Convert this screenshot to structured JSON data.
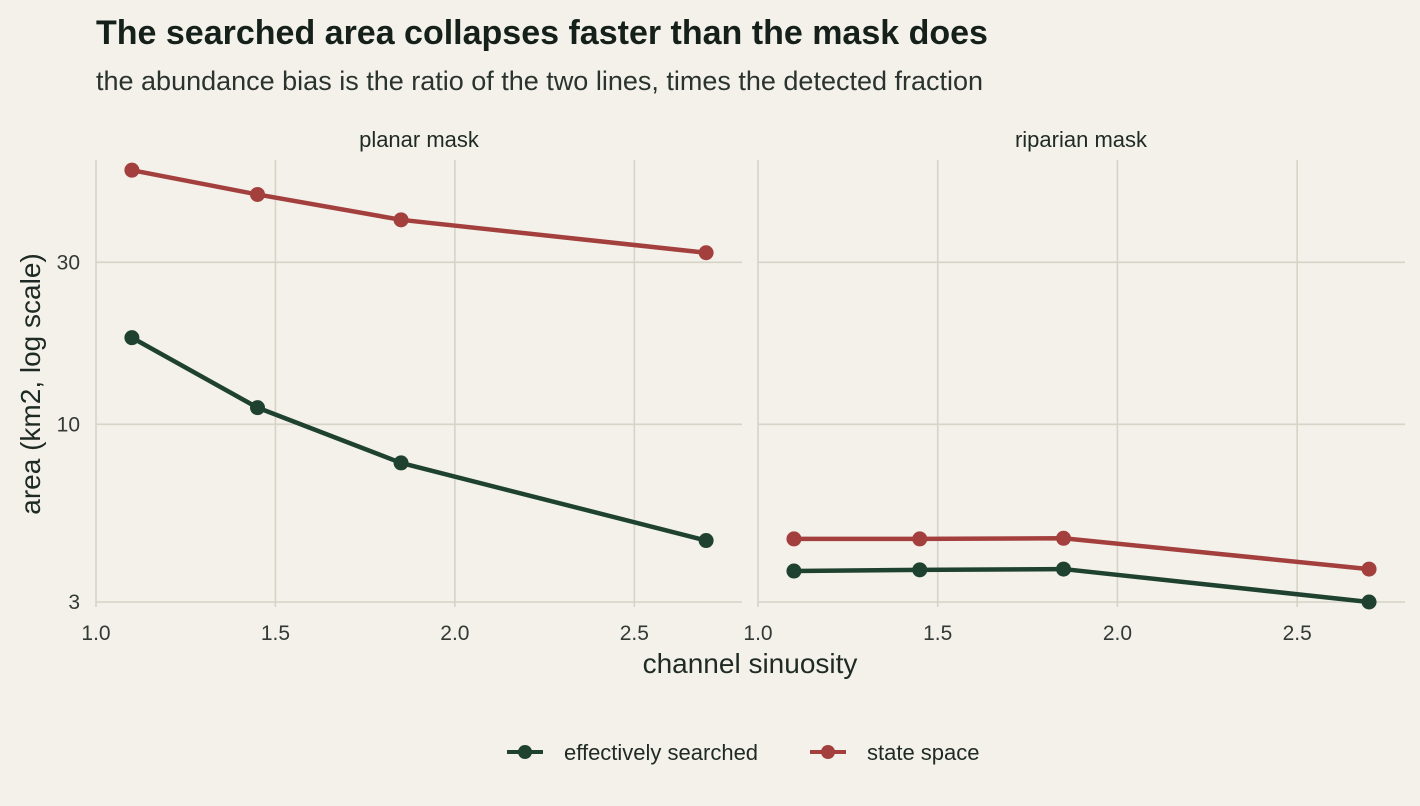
{
  "chart_data": {
    "type": "line",
    "title": "The searched area collapses faster than the mask does",
    "subtitle": "the abundance bias is the ratio of the two lines, times the detected fraction",
    "xlabel": "channel sinuosity",
    "ylabel": "area (km2, log scale)",
    "y_scale": "log",
    "xlim": [
      1.0,
      2.8
    ],
    "ylim": [
      2.9,
      60
    ],
    "x_ticks": [
      1.0,
      1.5,
      2.0,
      2.5
    ],
    "x_tick_labels": [
      "1.0",
      "1.5",
      "2.0",
      "2.5"
    ],
    "y_ticks": [
      3,
      10,
      30
    ],
    "y_tick_labels": [
      "3",
      "10",
      "30"
    ],
    "grid": true,
    "legend_position": "bottom",
    "colors": {
      "effectively searched": "#1f4230",
      "state space": "#a3403e"
    },
    "panels": [
      {
        "name": "planar mask",
        "x": [
          1.1,
          1.45,
          1.85,
          2.7
        ],
        "series": [
          {
            "name": "state space",
            "values": [
              56,
              47.5,
              40,
              32
            ]
          },
          {
            "name": "effectively searched",
            "values": [
              18,
              11.2,
              7.7,
              4.55
            ]
          }
        ]
      },
      {
        "name": "riparian mask",
        "x": [
          1.1,
          1.45,
          1.85,
          2.7
        ],
        "series": [
          {
            "name": "state space",
            "values": [
              4.6,
              4.6,
              4.62,
              3.75
            ]
          },
          {
            "name": "effectively searched",
            "values": [
              3.7,
              3.73,
              3.75,
              3.0
            ]
          }
        ]
      }
    ],
    "legend": [
      "effectively searched",
      "state space"
    ]
  }
}
